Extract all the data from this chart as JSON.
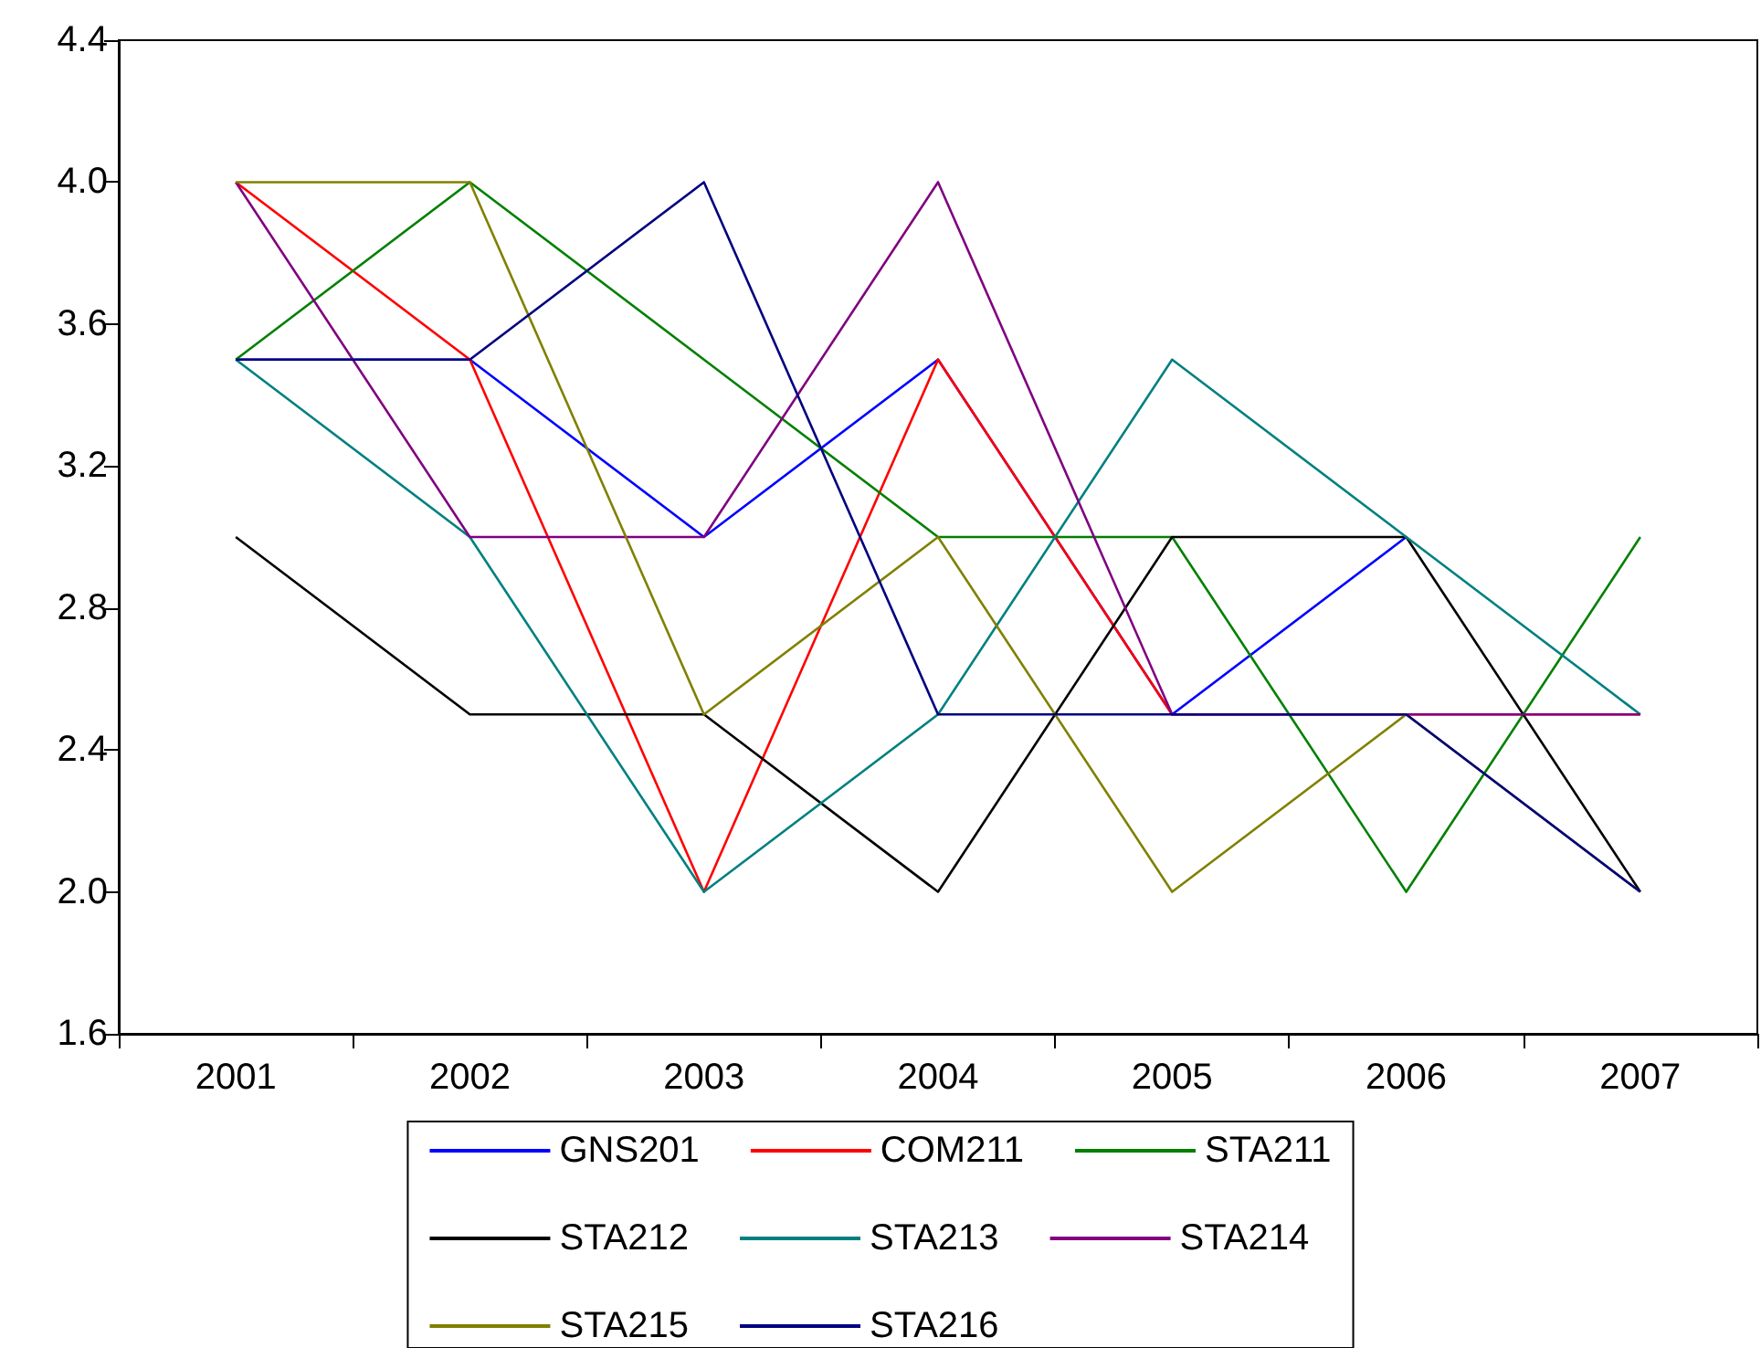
{
  "chart_data": {
    "type": "line",
    "categories": [
      "2001",
      "2002",
      "2003",
      "2004",
      "2005",
      "2006",
      "2007"
    ],
    "ylim": [
      1.6,
      4.4
    ],
    "yticks": [
      {
        "value": 1.6,
        "label": "1.6"
      },
      {
        "value": 2,
        "label": "2.0"
      },
      {
        "value": 2.4,
        "label": "2.4"
      },
      {
        "value": 2.8,
        "label": "2.8"
      },
      {
        "value": 3.2,
        "label": "3.2"
      },
      {
        "value": 3.6,
        "label": "3.6"
      },
      {
        "value": 4,
        "label": "4.0"
      },
      {
        "value": 4.4,
        "label": "4.4"
      }
    ],
    "grid": false,
    "legend": "bottom",
    "marker": "none",
    "line_style": "solid",
    "series": [
      {
        "name": "GNS201",
        "color": "#0000ff",
        "values": [
          3.5,
          3.5,
          3.0,
          3.5,
          2.5,
          3.0,
          null
        ]
      },
      {
        "name": "COM211",
        "color": "#ff0000",
        "values": [
          4.0,
          3.5,
          2.0,
          3.5,
          2.5,
          2.5,
          2.5
        ]
      },
      {
        "name": "STA211",
        "color": "#008000",
        "values": [
          3.5,
          4.0,
          3.5,
          3.0,
          3.0,
          2.0,
          3.0
        ]
      },
      {
        "name": "STA212",
        "color": "#000000",
        "values": [
          3.0,
          2.5,
          2.5,
          2.0,
          3.0,
          3.0,
          2.0
        ]
      },
      {
        "name": "STA213",
        "color": "#008080",
        "values": [
          3.5,
          3.0,
          2.0,
          2.5,
          3.5,
          3.0,
          2.5
        ]
      },
      {
        "name": "STA214",
        "color": "#800080",
        "values": [
          4.0,
          3.0,
          3.0,
          4.0,
          2.5,
          2.5,
          2.5
        ]
      },
      {
        "name": "STA215",
        "color": "#808000",
        "values": [
          4.0,
          4.0,
          2.5,
          3.0,
          2.0,
          2.5,
          2.0
        ]
      },
      {
        "name": "STA216",
        "color": "#000080",
        "values": [
          3.5,
          3.5,
          4.0,
          2.5,
          2.5,
          2.5,
          2.0
        ]
      }
    ]
  }
}
